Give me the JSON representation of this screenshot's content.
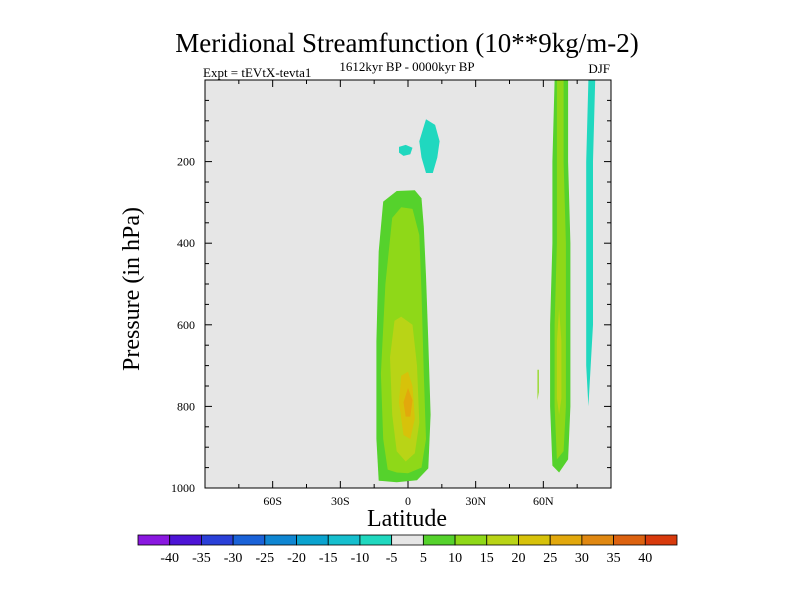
{
  "chart_data": {
    "type": "contour",
    "title": "Meridional Streamfunction (10**9kg/m-2)",
    "left_label": "Expt = tEVtX-tevta1",
    "center_label": "1612kyr BP - 0000kyr BP",
    "right_label": "DJF",
    "xlabel": "Latitude",
    "ylabel": "Pressure (in hPa)",
    "xlim": [
      -90,
      90
    ],
    "ylim": [
      0,
      1000
    ],
    "x_ticks": [
      {
        "value": -60,
        "label": "60S"
      },
      {
        "value": -30,
        "label": "30S"
      },
      {
        "value": 0,
        "label": "0"
      },
      {
        "value": 30,
        "label": "30N"
      },
      {
        "value": 60,
        "label": "60N"
      }
    ],
    "y_ticks": [
      {
        "value": 200,
        "label": "200"
      },
      {
        "value": 400,
        "label": "400"
      },
      {
        "value": 600,
        "label": "600"
      },
      {
        "value": 800,
        "label": "800"
      },
      {
        "value": 1000,
        "label": "1000"
      }
    ],
    "colorbar": {
      "boundaries": [
        "-40",
        "-35",
        "-30",
        "-25",
        "-20",
        "-15",
        "-10",
        "-5",
        "5",
        "10",
        "15",
        "20",
        "25",
        "30",
        "35",
        "40"
      ],
      "colors": [
        "#8a18e0",
        "#4d14d6",
        "#2a40d8",
        "#1a62d8",
        "#0f86d2",
        "#0aa3cf",
        "#16bfce",
        "#20d8bf",
        "#e6e6e6",
        "#55d22c",
        "#8fd818",
        "#b9d416",
        "#d7c20a",
        "#e2a80c",
        "#e08812",
        "#dc6210",
        "#d83a0c"
      ]
    },
    "regions": [
      {
        "name": "tropical-cell-outer",
        "level": "5",
        "color": "#55d22c",
        "points": [
          [
            -13,
            982
          ],
          [
            -14,
            880
          ],
          [
            -14,
            640
          ],
          [
            -13,
            420
          ],
          [
            -11,
            298
          ],
          [
            -5,
            272
          ],
          [
            3,
            270
          ],
          [
            6,
            290
          ],
          [
            7,
            360
          ],
          [
            8,
            480
          ],
          [
            9,
            640
          ],
          [
            10,
            820
          ],
          [
            9,
            952
          ],
          [
            4,
            981
          ],
          [
            -5,
            986
          ]
        ]
      },
      {
        "name": "tropical-cell-10",
        "level": "10",
        "color": "#8fd818",
        "points": [
          [
            -9,
            955
          ],
          [
            -11,
            880
          ],
          [
            -12,
            720
          ],
          [
            -10,
            500
          ],
          [
            -7,
            338
          ],
          [
            -3,
            312
          ],
          [
            2,
            316
          ],
          [
            5,
            380
          ],
          [
            6,
            520
          ],
          [
            7,
            720
          ],
          [
            8,
            880
          ],
          [
            6,
            950
          ],
          [
            0,
            964
          ],
          [
            -5,
            962
          ]
        ]
      },
      {
        "name": "tropical-cell-15",
        "level": "15",
        "color": "#b9d416",
        "points": [
          [
            -5,
            910
          ],
          [
            -7,
            820
          ],
          [
            -8,
            680
          ],
          [
            -6,
            590
          ],
          [
            -3,
            580
          ],
          [
            2,
            600
          ],
          [
            4,
            700
          ],
          [
            5,
            840
          ],
          [
            3,
            915
          ],
          [
            -1,
            935
          ]
        ]
      },
      {
        "name": "tropical-cell-20",
        "level": "20",
        "color": "#d7c20a",
        "points": [
          [
            -2,
            870
          ],
          [
            -4,
            790
          ],
          [
            -3,
            725
          ],
          [
            0,
            715
          ],
          [
            2,
            750
          ],
          [
            3,
            830
          ],
          [
            1,
            880
          ]
        ]
      },
      {
        "name": "tropical-cell-25",
        "level": "25",
        "color": "#e2a80c",
        "points": [
          [
            -1,
            825
          ],
          [
            -2,
            790
          ],
          [
            0,
            755
          ],
          [
            2,
            785
          ],
          [
            1,
            825
          ]
        ]
      },
      {
        "name": "negative-blob-small",
        "level": "-5",
        "color": "#20d8bf",
        "points": [
          [
            -4,
            164
          ],
          [
            -1,
            159
          ],
          [
            2,
            166
          ],
          [
            1,
            182
          ],
          [
            -2,
            186
          ],
          [
            -4,
            178
          ]
        ]
      },
      {
        "name": "negative-blob-upper",
        "level": "-5",
        "color": "#20d8bf",
        "points": [
          [
            8,
            96
          ],
          [
            12,
            110
          ],
          [
            14,
            150
          ],
          [
            13,
            190
          ],
          [
            11,
            228
          ],
          [
            8,
            228
          ],
          [
            6,
            190
          ],
          [
            5,
            150
          ]
        ]
      },
      {
        "name": "polar-cell-outer",
        "level": "5",
        "color": "#55d22c",
        "points": [
          [
            65,
            0
          ],
          [
            71,
            0
          ],
          [
            71,
            200
          ],
          [
            72,
            400
          ],
          [
            72,
            600
          ],
          [
            72,
            800
          ],
          [
            71,
            930
          ],
          [
            67,
            962
          ],
          [
            64,
            945
          ],
          [
            63,
            800
          ],
          [
            63,
            600
          ],
          [
            64,
            400
          ],
          [
            64,
            200
          ]
        ]
      },
      {
        "name": "polar-cell-10",
        "level": "10",
        "color": "#8fd818",
        "points": [
          [
            66,
            0
          ],
          [
            69,
            0
          ],
          [
            69,
            200
          ],
          [
            70,
            400
          ],
          [
            70,
            600
          ],
          [
            70,
            800
          ],
          [
            69,
            910
          ],
          [
            66,
            930
          ],
          [
            65,
            800
          ],
          [
            65,
            600
          ],
          [
            66,
            400
          ],
          [
            66,
            200
          ]
        ]
      },
      {
        "name": "polar-cell-15",
        "level": "15",
        "color": "#b9d416",
        "points": [
          [
            67,
            560
          ],
          [
            68,
            640
          ],
          [
            68,
            780
          ],
          [
            67,
            820
          ],
          [
            66,
            780
          ],
          [
            66,
            640
          ]
        ]
      },
      {
        "name": "polar-negative",
        "level": "-5",
        "color": "#20d8bf",
        "points": [
          [
            80,
            0
          ],
          [
            83,
            0
          ],
          [
            82,
            200
          ],
          [
            82,
            400
          ],
          [
            82,
            600
          ],
          [
            81,
            700
          ],
          [
            80,
            800
          ],
          [
            79,
            700
          ],
          [
            79,
            600
          ],
          [
            79,
            400
          ],
          [
            79,
            200
          ]
        ]
      },
      {
        "name": "polar-sliver",
        "level": "10",
        "color": "#8fd818",
        "points": [
          [
            57.4,
            710
          ],
          [
            58,
            710
          ],
          [
            58,
            765
          ],
          [
            57.4,
            785
          ]
        ]
      }
    ]
  }
}
